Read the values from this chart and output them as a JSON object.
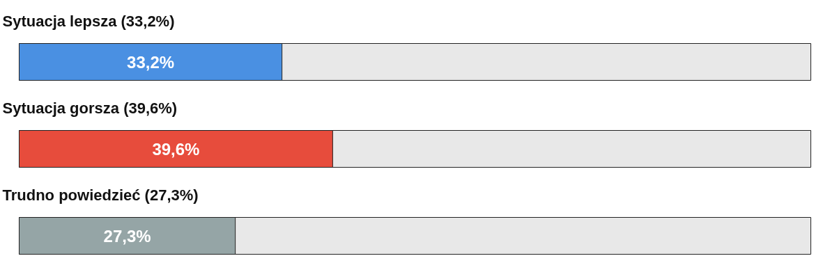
{
  "chart_data": {
    "type": "bar",
    "orientation": "horizontal",
    "categories": [
      "Sytuacja lepsza (33,2%)",
      "Sytuacja gorsza (39,6%)",
      "Trudno powiedzieć (27,3%)"
    ],
    "values": [
      33.2,
      39.6,
      27.3
    ],
    "colors": [
      "#4a90e2",
      "#e74c3c",
      "#95a5a6"
    ],
    "value_labels": [
      "33,2%",
      "39,6%",
      "27,3%"
    ],
    "xlim": [
      0,
      100
    ],
    "tick_labels": false
  }
}
